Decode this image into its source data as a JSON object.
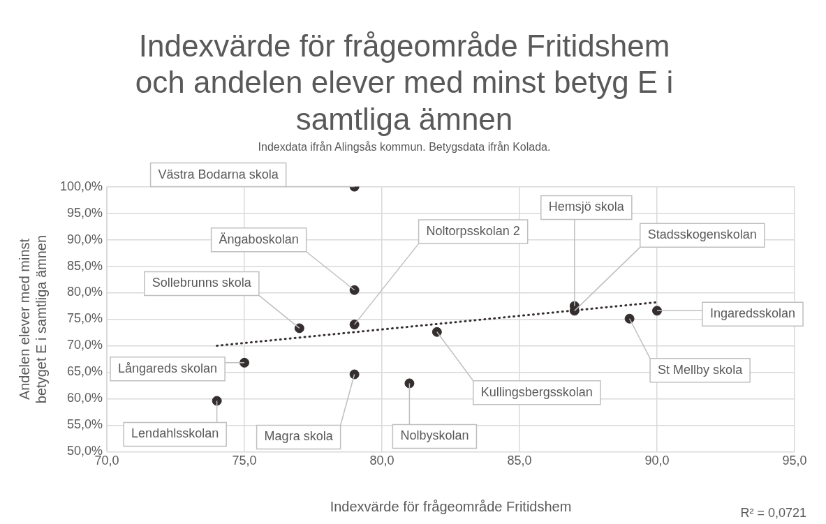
{
  "chart_data": {
    "type": "scatter",
    "title": "Indexvärde för frågeområde Fritidshem och andelen elever med minst betyg E i samtliga ämnen",
    "subtitle": "Indexdata ifrån Alingsås kommun. Betygsdata ifrån Kolada.",
    "xlabel": "Indexvärde för frågeområde Fritidshem",
    "ylabel": "Andelen elever med minst betyget E i samtliga ämnen",
    "xlim": [
      70,
      95
    ],
    "xticks": [
      {
        "value": 70,
        "label": "70,0"
      },
      {
        "value": 75,
        "label": "75,0"
      },
      {
        "value": 80,
        "label": "80,0"
      },
      {
        "value": 85,
        "label": "85,0"
      },
      {
        "value": 90,
        "label": "90,0"
      },
      {
        "value": 95,
        "label": "95,0"
      }
    ],
    "ylim": [
      50,
      100
    ],
    "yticks": [
      {
        "value": 50,
        "label": "50,0%"
      },
      {
        "value": 55,
        "label": "55,0%"
      },
      {
        "value": 60,
        "label": "60,0%"
      },
      {
        "value": 65,
        "label": "65,0%"
      },
      {
        "value": 70,
        "label": "70,0%"
      },
      {
        "value": 75,
        "label": "75,0%"
      },
      {
        "value": 80,
        "label": "80,0%"
      },
      {
        "value": 85,
        "label": "85,0%"
      },
      {
        "value": 90,
        "label": "90,0%"
      },
      {
        "value": 95,
        "label": "95,0%"
      },
      {
        "value": 100,
        "label": "100,0%"
      }
    ],
    "grid": true,
    "marker": "circle",
    "series": [
      {
        "type": "scatter",
        "color": "#352e2e",
        "x": [
          79,
          79,
          79,
          77,
          75,
          79,
          74,
          81,
          82,
          87,
          87,
          89,
          90
        ],
        "values": [
          100.0,
          80.5,
          74.0,
          73.3,
          66.8,
          64.6,
          59.6,
          62.9,
          72.6,
          77.5,
          76.6,
          75.1,
          76.6
        ]
      },
      {
        "type": "line",
        "color": "#352e2e",
        "line_style": "dotted",
        "marker": "none",
        "x": [
          74,
          90
        ],
        "values": [
          70.0,
          78.2
        ]
      }
    ],
    "annotations": [
      {
        "text": "Västra Bodarna skola",
        "x": 79,
        "y": 100.0
      },
      {
        "text": "Ängaboskolan",
        "x": 79,
        "y": 80.5
      },
      {
        "text": "Noltorpsskolan 2",
        "x": 79,
        "y": 74.0
      },
      {
        "text": "Sollebrunns skola",
        "x": 77,
        "y": 73.3
      },
      {
        "text": "Långareds skolan",
        "x": 75,
        "y": 66.8
      },
      {
        "text": "Magra skola",
        "x": 79,
        "y": 64.6
      },
      {
        "text": "Lendahlsskolan",
        "x": 74,
        "y": 59.6
      },
      {
        "text": "Nolbyskolan",
        "x": 81,
        "y": 62.9
      },
      {
        "text": "Kullingsbergsskolan",
        "x": 82,
        "y": 72.6
      },
      {
        "text": "Hemsjö skola",
        "x": 87,
        "y": 77.5
      },
      {
        "text": "Stadsskogenskolan",
        "x": 87,
        "y": 76.6
      },
      {
        "text": "St Mellby skola",
        "x": 89,
        "y": 75.1
      },
      {
        "text": "Ingaredsskolan",
        "x": 90,
        "y": 76.6
      },
      "R² = 0,0721"
    ]
  }
}
